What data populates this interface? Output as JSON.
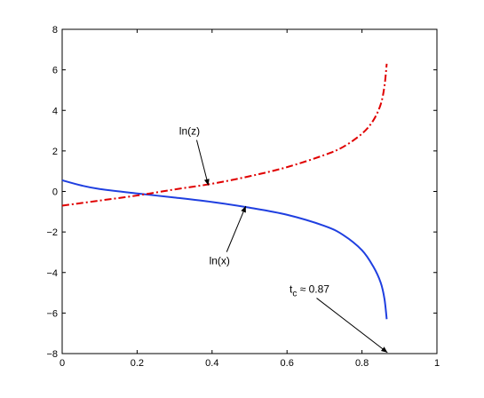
{
  "chart_data": {
    "type": "line",
    "xlim": [
      0,
      1
    ],
    "ylim": [
      -8,
      8
    ],
    "x_ticks": [
      0,
      0.2,
      0.4,
      0.6,
      0.8,
      1
    ],
    "x_tick_labels": [
      "0",
      "0.2",
      "0.4",
      "0.6",
      "0.8",
      "1"
    ],
    "y_ticks": [
      -8,
      -6,
      -4,
      -2,
      0,
      2,
      4,
      6,
      8
    ],
    "y_tick_labels": [
      "−8",
      "−6",
      "−4",
      "−2",
      "0",
      "2",
      "4",
      "6",
      "8"
    ],
    "grid": false,
    "series": [
      {
        "name": "ln(x)",
        "color": "#1f3fe0",
        "style": "solid",
        "x": [
          0,
          0.05,
          0.1,
          0.2,
          0.3,
          0.4,
          0.5,
          0.6,
          0.7,
          0.75,
          0.8,
          0.83,
          0.85,
          0.86,
          0.866
        ],
        "y": [
          0.55,
          0.3,
          0.12,
          -0.1,
          -0.3,
          -0.52,
          -0.8,
          -1.15,
          -1.7,
          -2.15,
          -2.9,
          -3.7,
          -4.5,
          -5.3,
          -6.3
        ]
      },
      {
        "name": "ln(z)",
        "color": "#e00000",
        "style": "dashdot",
        "x": [
          0,
          0.1,
          0.2,
          0.3,
          0.4,
          0.5,
          0.6,
          0.7,
          0.75,
          0.8,
          0.83,
          0.85,
          0.86,
          0.866
        ],
        "y": [
          -0.7,
          -0.45,
          -0.2,
          0.1,
          0.38,
          0.75,
          1.2,
          1.8,
          2.2,
          2.85,
          3.5,
          4.3,
          5.2,
          6.3
        ]
      }
    ],
    "annotations": [
      {
        "text": "ln(z)",
        "x": 0.34,
        "y": 2.8,
        "arrow_to": [
          0.39,
          0.3
        ]
      },
      {
        "text": "ln(x)",
        "x": 0.42,
        "y": -3.6,
        "arrow_to": [
          0.49,
          -0.72
        ]
      },
      {
        "text_main": "t",
        "text_sub": "c",
        "text_rest": " ≈ 0.87",
        "x": 0.66,
        "y": -5.0,
        "arrow_to": [
          0.868,
          -7.95
        ]
      }
    ]
  }
}
